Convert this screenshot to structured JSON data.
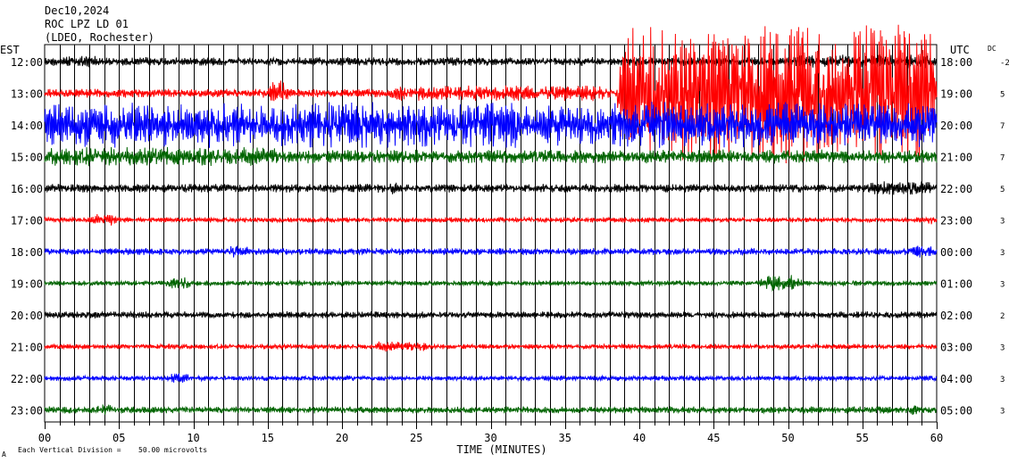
{
  "header": {
    "date": "Dec10,2024",
    "station": "ROC LPZ LD 01",
    "network": "(LDEO, Rochester)"
  },
  "axes": {
    "left_tz": "EST",
    "right_tz": "UTC",
    "dc_label": "DC",
    "x_title": "TIME (MINUTES)",
    "x_tick_labels": [
      "00",
      "05",
      "10",
      "15",
      "20",
      "25",
      "30",
      "35",
      "40",
      "45",
      "50",
      "55",
      "60"
    ]
  },
  "footer": {
    "scale_note": "Each Vertical Division =",
    "scale_value": "50.00 microvolts",
    "corner_mark": "A"
  },
  "chart_data": {
    "type": "line",
    "title": "Dec10,2024",
    "xlabel": "TIME (MINUTES)",
    "xlim": [
      0,
      60
    ],
    "x_tick_step": 5,
    "grid": "vertical-every-minute",
    "colors": [
      "#000000",
      "#ff0000",
      "#0000ff",
      "#006400"
    ],
    "rows": [
      {
        "est": "12:00",
        "utc": "18:00",
        "dc": "-2",
        "color": "#000000",
        "amp": 5,
        "events": [
          {
            "start": 1,
            "end": 4,
            "amp": 7
          },
          {
            "start": 50,
            "end": 60,
            "amp": 8
          }
        ]
      },
      {
        "est": "13:00",
        "utc": "19:00",
        "dc": "5",
        "color": "#ff0000",
        "amp": 5,
        "events": [
          {
            "start": 15,
            "end": 16.5,
            "amp": 16
          },
          {
            "start": 23,
            "end": 38.5,
            "amp": 9
          },
          {
            "start": 38.5,
            "end": 60,
            "amp": 80
          }
        ]
      },
      {
        "est": "14:00",
        "utc": "20:00",
        "dc": "7",
        "color": "#0000ff",
        "amp": 26,
        "events": [
          {
            "start": 38,
            "end": 60,
            "amp": 12
          }
        ]
      },
      {
        "est": "15:00",
        "utc": "21:00",
        "dc": "7",
        "color": "#006400",
        "amp": 8,
        "events": [
          {
            "start": 0,
            "end": 16,
            "amp": 11
          }
        ]
      },
      {
        "est": "16:00",
        "utc": "22:00",
        "dc": "5",
        "color": "#000000",
        "amp": 5,
        "events": [
          {
            "start": 23,
            "end": 24,
            "amp": 8
          },
          {
            "start": 55,
            "end": 60,
            "amp": 8
          }
        ]
      },
      {
        "est": "17:00",
        "utc": "23:00",
        "dc": "3",
        "color": "#ff0000",
        "amp": 3,
        "events": [
          {
            "start": 3,
            "end": 5,
            "amp": 7
          },
          {
            "start": 59,
            "end": 60,
            "amp": 6
          }
        ]
      },
      {
        "est": "18:00",
        "utc": "00:00",
        "dc": "3",
        "color": "#0000ff",
        "amp": 4,
        "events": [
          {
            "start": 12,
            "end": 14,
            "amp": 7
          },
          {
            "start": 58,
            "end": 60,
            "amp": 7
          }
        ]
      },
      {
        "est": "19:00",
        "utc": "01:00",
        "dc": "3",
        "color": "#006400",
        "amp": 3,
        "events": [
          {
            "start": 8,
            "end": 10,
            "amp": 7
          },
          {
            "start": 48,
            "end": 51,
            "amp": 10
          }
        ]
      },
      {
        "est": "20:00",
        "utc": "02:00",
        "dc": "2",
        "color": "#000000",
        "amp": 4,
        "events": []
      },
      {
        "est": "21:00",
        "utc": "03:00",
        "dc": "3",
        "color": "#ff0000",
        "amp": 3,
        "events": [
          {
            "start": 22,
            "end": 26,
            "amp": 6
          }
        ]
      },
      {
        "est": "22:00",
        "utc": "04:00",
        "dc": "3",
        "color": "#0000ff",
        "amp": 3,
        "events": [
          {
            "start": 8,
            "end": 10,
            "amp": 6
          }
        ]
      },
      {
        "est": "23:00",
        "utc": "05:00",
        "dc": "3",
        "color": "#006400",
        "amp": 4,
        "events": [
          {
            "start": 3,
            "end": 5,
            "amp": 7
          },
          {
            "start": 58,
            "end": 59,
            "amp": 8
          }
        ]
      }
    ]
  }
}
